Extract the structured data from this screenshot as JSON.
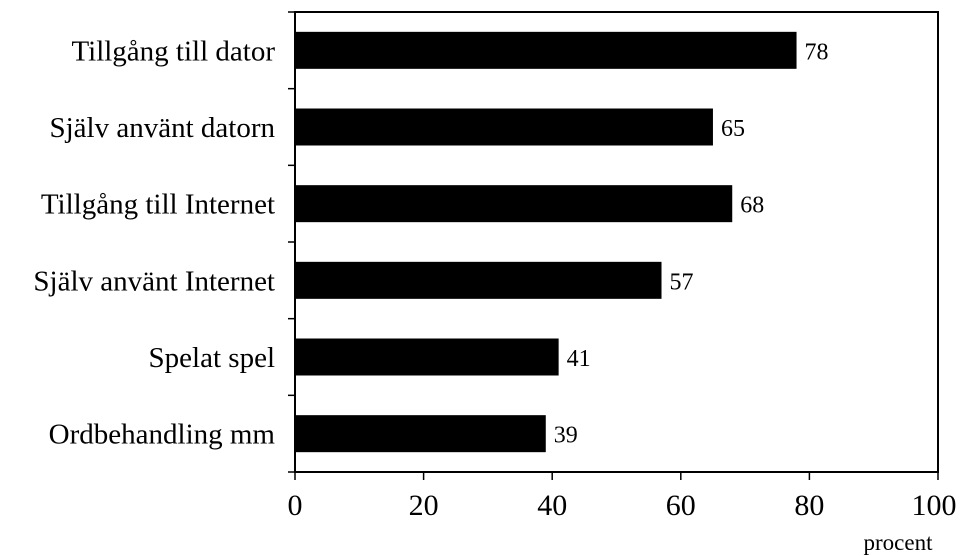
{
  "chart_data": {
    "type": "bar",
    "orientation": "horizontal",
    "categories": [
      "Tillgång till dator",
      "Själv använt datorn",
      "Tillgång till Internet",
      "Själv använt Internet",
      "Spelat spel",
      "Ordbehandling mm"
    ],
    "values": [
      78,
      65,
      68,
      57,
      41,
      39
    ],
    "value_labels": [
      "78",
      "65",
      "68",
      "57",
      "41",
      "39"
    ],
    "x_ticks": [
      "0",
      "20",
      "40",
      "60",
      "80",
      "100"
    ],
    "xlim": [
      0,
      100
    ],
    "xlabel": "procent",
    "grid": false,
    "bar_color": "#000000"
  }
}
